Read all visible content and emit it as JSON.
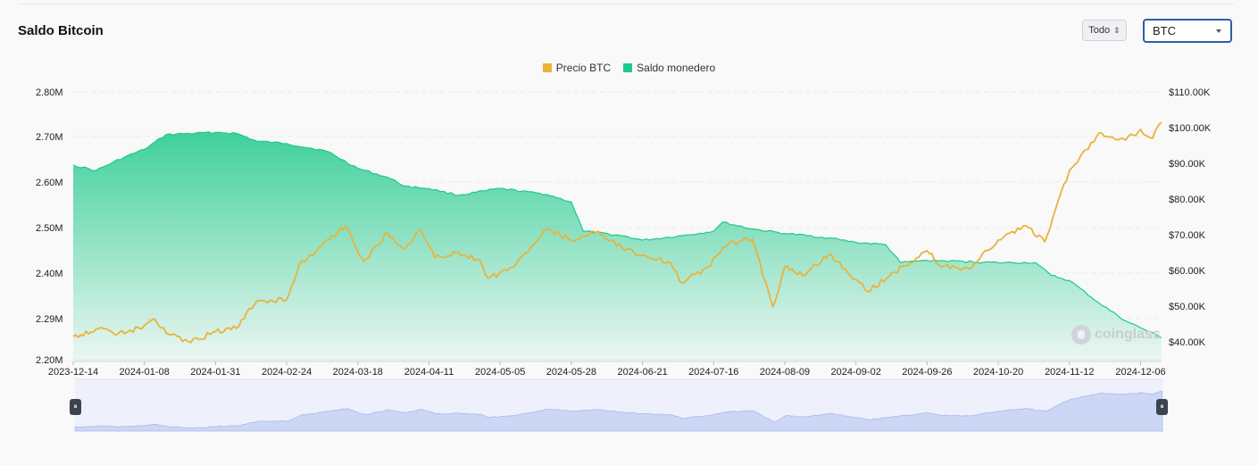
{
  "header": {
    "title": "Saldo Bitcoin",
    "range_label": "Todo",
    "asset_select_value": "BTC"
  },
  "watermark": "coinglass",
  "colors": {
    "price": "#e8b33c",
    "balance": "#1ec98b",
    "navigator": "#ccd6f5"
  },
  "chart_data": {
    "type": "area",
    "legend_placement": "top-center",
    "grid": true,
    "x_labels": [
      "2023-12-14",
      "2024-01-08",
      "2024-01-31",
      "2024-02-24",
      "2024-03-18",
      "2024-04-11",
      "2024-05-05",
      "2024-05-28",
      "2024-06-21",
      "2024-07-16",
      "2024-08-09",
      "2024-09-02",
      "2024-09-26",
      "2024-10-20",
      "2024-11-12",
      "2024-12-06"
    ],
    "y_left_ticks": [
      "2.80M",
      "2.70M",
      "2.60M",
      "2.50M",
      "2.40M",
      "2.29M",
      "2.20M"
    ],
    "y_right_ticks": [
      "$110.00K",
      "$100.00K",
      "$90.00K",
      "$80.00K",
      "$70.00K",
      "$60.00K",
      "$50.00K",
      "$40.00K"
    ],
    "y_left_range": [
      2.2,
      2.8
    ],
    "y_right_range": [
      35000,
      110000
    ],
    "series": [
      {
        "name": "Precio BTC",
        "axis": "right",
        "type": "line",
        "points": [
          [
            "2023-12-14",
            41500
          ],
          [
            "2023-12-22",
            43500
          ],
          [
            "2024-01-01",
            42300
          ],
          [
            "2024-01-08",
            44500
          ],
          [
            "2024-01-11",
            46500
          ],
          [
            "2024-01-15",
            42500
          ],
          [
            "2024-01-23",
            39800
          ],
          [
            "2024-01-31",
            42900
          ],
          [
            "2024-02-07",
            43800
          ],
          [
            "2024-02-14",
            51500
          ],
          [
            "2024-02-24",
            51800
          ],
          [
            "2024-02-28",
            61500
          ],
          [
            "2024-03-05",
            66000
          ],
          [
            "2024-03-08",
            68500
          ],
          [
            "2024-03-14",
            72500
          ],
          [
            "2024-03-20",
            62500
          ],
          [
            "2024-03-28",
            70500
          ],
          [
            "2024-04-03",
            66000
          ],
          [
            "2024-04-08",
            71500
          ],
          [
            "2024-04-13",
            63500
          ],
          [
            "2024-04-20",
            65000
          ],
          [
            "2024-04-28",
            63000
          ],
          [
            "2024-05-01",
            57800
          ],
          [
            "2024-05-10",
            61500
          ],
          [
            "2024-05-20",
            71500
          ],
          [
            "2024-05-28",
            68500
          ],
          [
            "2024-06-06",
            71000
          ],
          [
            "2024-06-14",
            66500
          ],
          [
            "2024-06-21",
            64200
          ],
          [
            "2024-06-30",
            62500
          ],
          [
            "2024-07-05",
            56500
          ],
          [
            "2024-07-14",
            61000
          ],
          [
            "2024-07-21",
            67500
          ],
          [
            "2024-07-29",
            68800
          ],
          [
            "2024-08-05",
            49800
          ],
          [
            "2024-08-09",
            61000
          ],
          [
            "2024-08-15",
            58500
          ],
          [
            "2024-08-24",
            64500
          ],
          [
            "2024-09-02",
            57500
          ],
          [
            "2024-09-06",
            54000
          ],
          [
            "2024-09-15",
            59500
          ],
          [
            "2024-09-26",
            65500
          ],
          [
            "2024-10-01",
            61000
          ],
          [
            "2024-10-10",
            60500
          ],
          [
            "2024-10-20",
            68500
          ],
          [
            "2024-10-29",
            72500
          ],
          [
            "2024-11-04",
            68000
          ],
          [
            "2024-11-12",
            88000
          ],
          [
            "2024-11-22",
            98500
          ],
          [
            "2024-12-01",
            96500
          ],
          [
            "2024-12-06",
            99500
          ],
          [
            "2024-12-10",
            97000
          ],
          [
            "2024-12-13",
            101500
          ]
        ]
      },
      {
        "name": "Saldo monedero",
        "axis": "left",
        "type": "area",
        "points": [
          [
            "2023-12-14",
            2.637
          ],
          [
            "2023-12-22",
            2.625
          ],
          [
            "2024-01-01",
            2.655
          ],
          [
            "2024-01-08",
            2.672
          ],
          [
            "2024-01-15",
            2.705
          ],
          [
            "2024-01-31",
            2.71
          ],
          [
            "2024-02-07",
            2.708
          ],
          [
            "2024-02-14",
            2.69
          ],
          [
            "2024-02-24",
            2.685
          ],
          [
            "2024-03-08",
            2.668
          ],
          [
            "2024-03-18",
            2.63
          ],
          [
            "2024-03-28",
            2.61
          ],
          [
            "2024-04-03",
            2.59
          ],
          [
            "2024-04-11",
            2.585
          ],
          [
            "2024-04-21",
            2.57
          ],
          [
            "2024-05-05",
            2.585
          ],
          [
            "2024-05-20",
            2.572
          ],
          [
            "2024-05-28",
            2.555
          ],
          [
            "2024-06-01",
            2.49
          ],
          [
            "2024-06-14",
            2.48
          ],
          [
            "2024-06-21",
            2.47
          ],
          [
            "2024-07-05",
            2.48
          ],
          [
            "2024-07-16",
            2.49
          ],
          [
            "2024-07-19",
            2.51
          ],
          [
            "2024-07-29",
            2.495
          ],
          [
            "2024-08-09",
            2.485
          ],
          [
            "2024-08-24",
            2.475
          ],
          [
            "2024-09-02",
            2.465
          ],
          [
            "2024-09-12",
            2.46
          ],
          [
            "2024-09-17",
            2.42
          ],
          [
            "2024-09-26",
            2.425
          ],
          [
            "2024-10-20",
            2.42
          ],
          [
            "2024-11-01",
            2.42
          ],
          [
            "2024-11-06",
            2.392
          ],
          [
            "2024-11-12",
            2.38
          ],
          [
            "2024-11-22",
            2.33
          ],
          [
            "2024-12-01",
            2.29
          ],
          [
            "2024-12-06",
            2.275
          ],
          [
            "2024-12-13",
            2.253
          ]
        ]
      }
    ]
  }
}
